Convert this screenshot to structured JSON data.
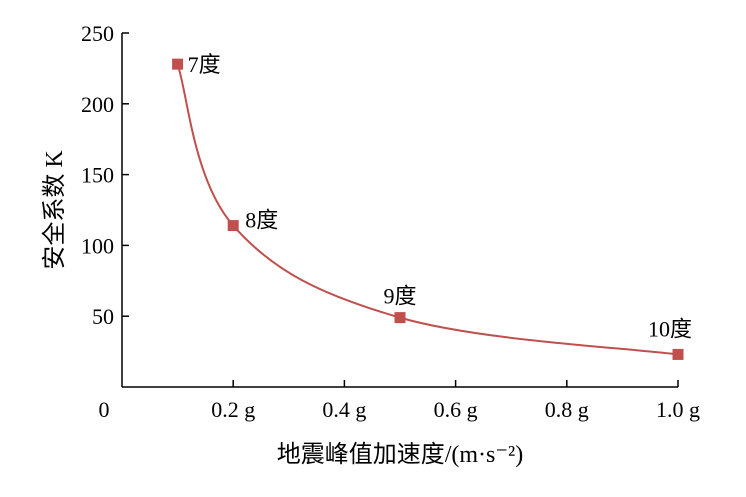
{
  "chart_data": {
    "type": "line",
    "title": "",
    "xlabel": "地震峰值加速度/(m·s⁻²)",
    "ylabel": "安全系数 K",
    "x_tick_labels": [
      "0",
      "0.2 g",
      "0.4 g",
      "0.6 g",
      "0.8 g",
      "1.0 g"
    ],
    "x_ticks": [
      0,
      0.2,
      0.4,
      0.6,
      0.8,
      1.0
    ],
    "y_tick_labels": [
      "50",
      "100",
      "150",
      "200",
      "250"
    ],
    "y_ticks": [
      50,
      100,
      150,
      200,
      250
    ],
    "xlim": [
      0,
      1.0
    ],
    "ylim": [
      0,
      250
    ],
    "grid": false,
    "legend": "none",
    "line_color": "#c0504d",
    "marker_color": "#c0504d",
    "points": [
      {
        "x": 0.1,
        "y": 228,
        "label": "7度"
      },
      {
        "x": 0.2,
        "y": 114,
        "label": "8度"
      },
      {
        "x": 0.5,
        "y": 49,
        "label": "9度"
      },
      {
        "x": 1.0,
        "y": 23,
        "label": "10度"
      }
    ]
  }
}
